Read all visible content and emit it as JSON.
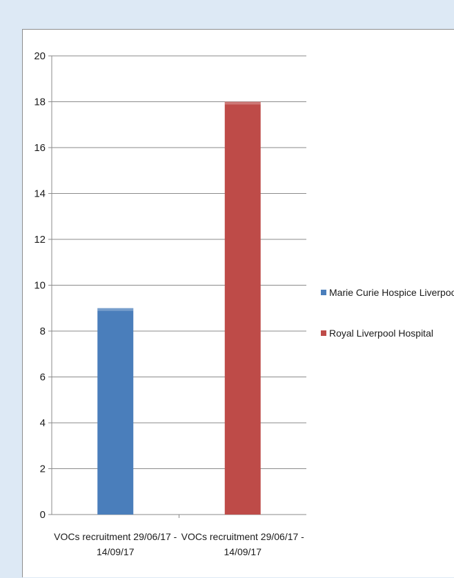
{
  "chart_data": {
    "type": "bar",
    "categories": [
      "VOCs recruitment 29/06/17 - 14/09/17",
      "VOCs recruitment 29/06/17 - 14/09/17"
    ],
    "series": [
      {
        "name": "Marie Curie Hospice Liverpool",
        "values": [
          9,
          null
        ],
        "color": "#4a7ebb"
      },
      {
        "name": "Royal Liverpool Hospital",
        "values": [
          null,
          18
        ],
        "color": "#be4b48"
      }
    ],
    "yticks": [
      0,
      2,
      4,
      6,
      8,
      10,
      12,
      14,
      16,
      18,
      20
    ],
    "ylim": [
      0,
      20
    ],
    "grid": true,
    "legend_position": "right",
    "title": "",
    "xlabel": "",
    "ylabel": ""
  }
}
